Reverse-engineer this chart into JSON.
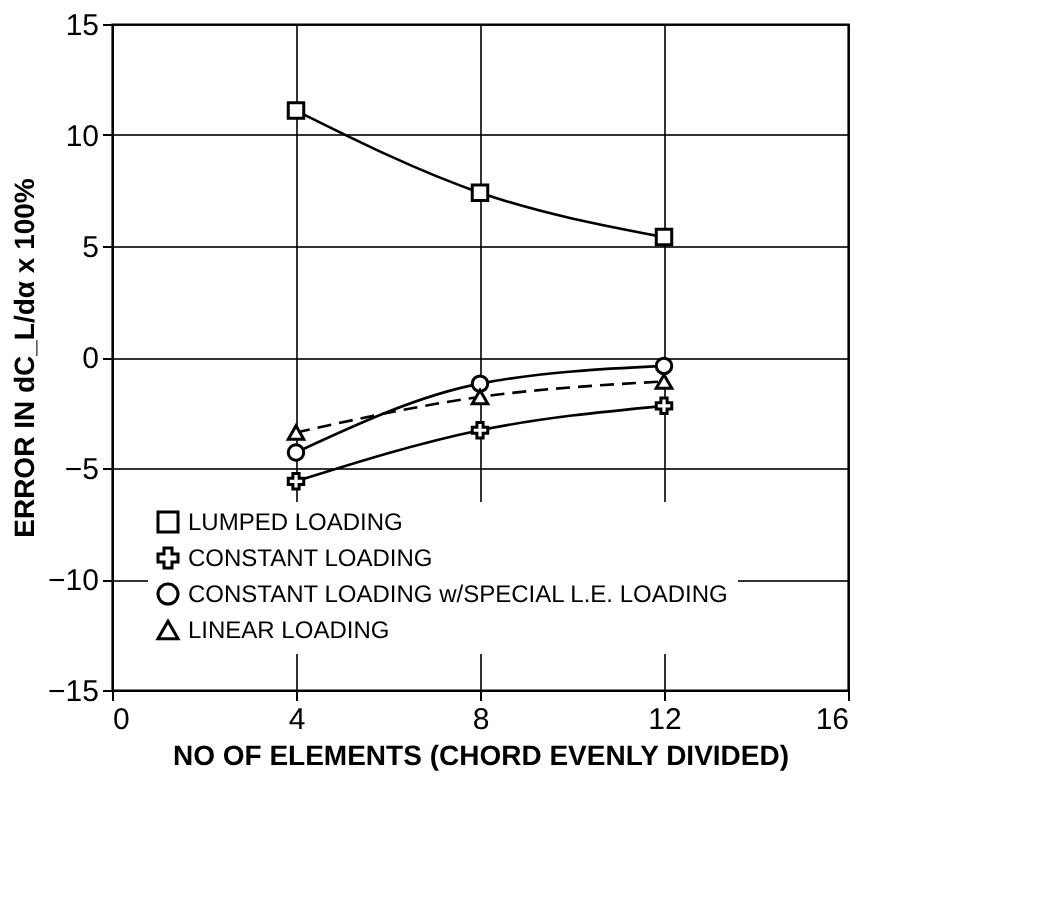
{
  "chart_data": {
    "type": "line",
    "xlabel": "NO  OF ELEMENTS  (CHORD EVENLY DIVIDED)",
    "ylabel": "ERROR IN dC_L/dα x 100%",
    "xlim": [
      0,
      16
    ],
    "xticks": [
      0,
      4,
      8,
      12,
      16
    ],
    "ylim": [
      -15,
      15
    ],
    "yticks": [
      -15,
      -10,
      -5,
      0,
      5,
      10,
      15
    ],
    "grid": true,
    "legend": "bottom left",
    "series": [
      {
        "name": "LUMPED LOADING",
        "color": "#000000",
        "marker": "square",
        "line_style": "solid",
        "x": [
          4,
          8,
          12
        ],
        "values": [
          11.1,
          7.4,
          5.4
        ]
      },
      {
        "name": "CONSTANT LOADING",
        "color": "#000000",
        "marker": "cross",
        "line_style": "solid",
        "x": [
          4,
          8,
          12
        ],
        "values": [
          -5.6,
          -3.3,
          -2.2
        ]
      },
      {
        "name": "CONSTANT LOADING w/SPECIAL L.E. LOADING",
        "color": "#000000",
        "marker": "circle",
        "line_style": "solid",
        "x": [
          4,
          8,
          12
        ],
        "values": [
          -4.3,
          -1.2,
          -0.4
        ]
      },
      {
        "name": "LINEAR LOADING",
        "color": "#000000",
        "marker": "triangle",
        "line_style": "dashed",
        "x": [
          4,
          8,
          12
        ],
        "values": [
          -3.4,
          -1.8,
          -1.1
        ]
      }
    ]
  }
}
